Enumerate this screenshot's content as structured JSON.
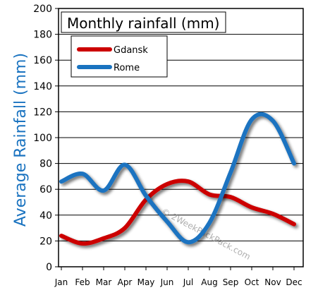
{
  "chart_data": {
    "type": "line",
    "title": "Monthly rainfall (mm)",
    "xlabel": "",
    "ylabel": "Average Rainfall (mm)",
    "categories": [
      "Jan",
      "Feb",
      "Mar",
      "Apr",
      "May",
      "Jun",
      "Jul",
      "Aug",
      "Sep",
      "Oct",
      "Nov",
      "Dec"
    ],
    "ylim": [
      0,
      200
    ],
    "yticks": [
      0,
      20,
      40,
      60,
      80,
      100,
      120,
      140,
      160,
      180,
      200
    ],
    "grid": true,
    "legend_position": "top-left",
    "series": [
      {
        "name": "Gdansk",
        "color": "#cc0000",
        "values": [
          24,
          18,
          22,
          30,
          52,
          64,
          66,
          56,
          54,
          46,
          41,
          33
        ]
      },
      {
        "name": "Rome",
        "color": "#1a73c0",
        "values": [
          66,
          72,
          59,
          79,
          55,
          35,
          19,
          34,
          73,
          114,
          113,
          80
        ]
      }
    ],
    "watermark": "© 2WeekPackPack.com"
  }
}
